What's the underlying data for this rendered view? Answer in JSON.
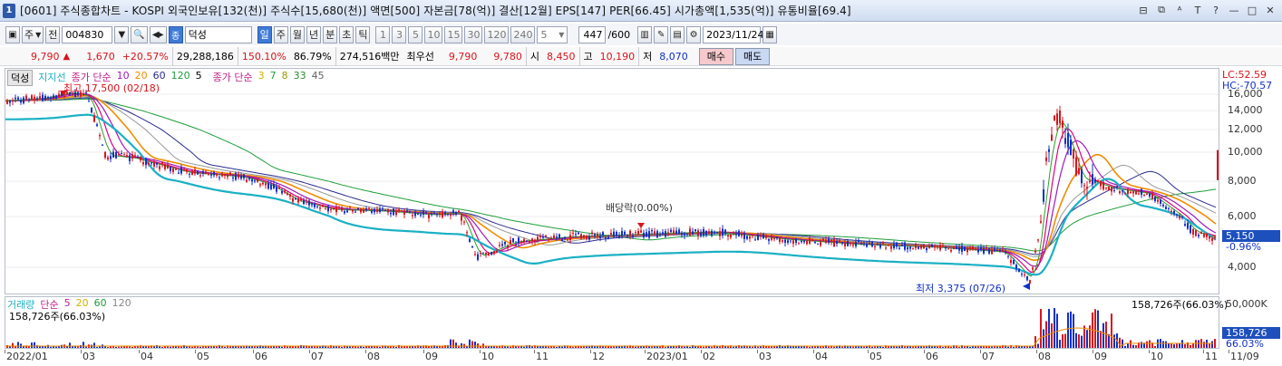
{
  "window": {
    "number": "1",
    "title": "[0601] 주식종합차트 - KOSPI 외국인보유[132(천)] 주식수[15,680(천)] 액면[500] 자본금[78(억)] 결산[12월] EPS[147] PER[66.45] 시가총액[1,535(억)] 유통비율[69.4]",
    "controls": [
      "⊟",
      "⧉",
      "ᴬ",
      "T",
      "?",
      "—",
      "□",
      "✕"
    ]
  },
  "toolbar": {
    "period_select": "주",
    "prev_label": "전",
    "code": "004830",
    "name": "덕성",
    "period_tabs": [
      "일",
      "주",
      "월",
      "년",
      "분",
      "초",
      "틱"
    ],
    "active_period": "일",
    "intervals": [
      "1",
      "3",
      "5",
      "10",
      "15",
      "30",
      "120",
      "240"
    ],
    "interval_value": "5",
    "count": "447",
    "count_total": "/600",
    "date": "2023/11/24"
  },
  "price_row": {
    "current": "9,790",
    "change_arrow": "▲",
    "change": "1,670",
    "change_pct": "+20.57%",
    "volume": "29,288,186",
    "vol_ratio": "150.10%",
    "rate": "86.79%",
    "amount": "274,516백만",
    "best_ask_label": "최우선",
    "best_ask": "9,790",
    "best_bid": "9,780",
    "open_label": "시",
    "open": "8,450",
    "high_label": "고",
    "high": "10,190",
    "low_label": "저",
    "low": "8,070",
    "buy_label": "매수",
    "sell_label": "매도"
  },
  "legend": {
    "stock": "덕성",
    "support": "지지선",
    "ma_title": "종가 단순",
    "ma_periods": [
      "10",
      "20",
      "60",
      "120",
      "5"
    ],
    "ma2_title": "종가 단순",
    "ma2_periods": [
      "3",
      "7",
      "8",
      "33",
      "45"
    ]
  },
  "indicators": {
    "lc": "LC:52.59",
    "hc": "HC:-70.57"
  },
  "annotations": {
    "high": "최고 17,500 (02/18)",
    "low": "최저 3,375 (07/26)",
    "dividend": "배당락(0.00%)",
    "vol_value_right": "158,726주(66.03%)"
  },
  "price_axis": [
    "16,000",
    "14,000",
    "12,000",
    "10,000",
    "8,000",
    "6,000",
    "4,000"
  ],
  "current_tag": {
    "price": "5,150",
    "pct": "-0.96%"
  },
  "volume_panel": {
    "title": "거래량",
    "ma_title": "단순",
    "ma_periods": [
      "5",
      "20",
      "60",
      "120"
    ],
    "value_left": "158,726주(66.03%)",
    "axis_top": "50,000K",
    "tag_value": "158,726",
    "tag_pct": "66.03%"
  },
  "x_axis": [
    "2022/01",
    "03",
    "04",
    "05",
    "06",
    "07",
    "08",
    "09",
    "10",
    "11",
    "12",
    "2023/01",
    "02",
    "03",
    "04",
    "05",
    "06",
    "07",
    "08",
    "09",
    "10",
    "11",
    "11/09"
  ],
  "colors": {
    "up": "#d8141c",
    "down": "#1030c8",
    "ma5": "#e0007e",
    "ma10": "#9d1cb7",
    "ma20": "#f08c00",
    "ma60": "#1f9e3a",
    "ma120": "#2c2c90",
    "support": "#1ab0c4"
  }
}
